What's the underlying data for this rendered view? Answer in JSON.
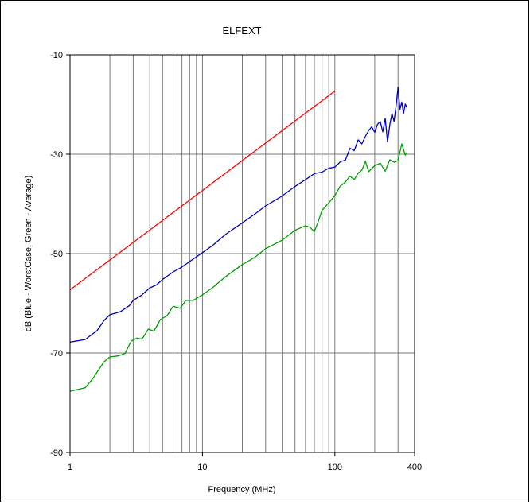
{
  "chart_data": {
    "type": "line",
    "title": "ELFEXT",
    "xlabel": "Frequency (MHz)",
    "ylabel": "dB (Blue - WorstCase, Green - Average)",
    "x_scale": "log",
    "xlim": [
      1,
      400
    ],
    "ylim": [
      -90,
      -10
    ],
    "x_ticks": [
      1,
      10,
      100,
      400
    ],
    "x_tick_labels": [
      "1",
      "10",
      "100",
      "400"
    ],
    "y_ticks": [
      -90,
      -70,
      -50,
      -30,
      -10
    ],
    "y_tick_labels": [
      "-90",
      "-70",
      "-50",
      "-30",
      "-10"
    ],
    "grid": true,
    "series": [
      {
        "color": "#ff0000",
        "x": [
          1,
          100
        ],
        "y": [
          -57.3,
          -17.3
        ]
      },
      {
        "color": "#0000c0",
        "x": [
          1,
          1.3,
          1.6,
          1.8,
          2,
          2.4,
          2.8,
          3,
          3.5,
          4,
          4.5,
          5,
          6,
          7,
          8,
          10,
          12,
          15,
          20,
          25,
          30,
          40,
          50,
          60,
          70,
          80,
          90,
          100,
          110,
          120,
          130,
          140,
          150,
          160,
          170,
          180,
          190,
          200,
          210,
          220,
          230,
          240,
          250,
          260,
          270,
          280,
          290,
          300,
          310,
          320,
          330,
          340,
          350
        ],
        "y": [
          -67.8,
          -67.3,
          -65.5,
          -63.5,
          -62.3,
          -61.7,
          -60.5,
          -59.4,
          -58.3,
          -56.9,
          -56.3,
          -55.2,
          -53.7,
          -52.7,
          -51.6,
          -49.8,
          -48.3,
          -46.1,
          -43.8,
          -42.0,
          -40.4,
          -38.4,
          -36.5,
          -35.1,
          -33.9,
          -33.6,
          -32.8,
          -32.6,
          -31.5,
          -31.2,
          -28.8,
          -29.3,
          -27.1,
          -27.9,
          -26.4,
          -25.2,
          -24.5,
          -25.6,
          -24.0,
          -23.4,
          -25.5,
          -22.8,
          -27.5,
          -24.0,
          -21.8,
          -23.4,
          -20.2,
          -16.5,
          -21.0,
          -19.5,
          -21.8,
          -19.9,
          -20.6
        ]
      },
      {
        "color": "#00a000",
        "x": [
          1,
          1.3,
          1.5,
          1.8,
          2,
          2.3,
          2.6,
          2.9,
          3.2,
          3.5,
          3.9,
          4.3,
          4.8,
          5.4,
          6,
          6.8,
          7.5,
          8.5,
          10,
          12,
          15,
          20,
          25,
          30,
          40,
          50,
          60,
          65,
          70,
          75,
          80,
          90,
          100,
          110,
          120,
          130,
          140,
          150,
          160,
          170,
          180,
          200,
          220,
          240,
          260,
          280,
          300,
          320,
          340,
          350
        ],
        "y": [
          -77.7,
          -77.0,
          -75.0,
          -71.8,
          -70.8,
          -70.6,
          -70.1,
          -67.6,
          -67.0,
          -67.2,
          -65.2,
          -65.6,
          -63.3,
          -62.5,
          -60.6,
          -61.0,
          -59.4,
          -59.4,
          -58.3,
          -56.8,
          -54.6,
          -52.2,
          -50.7,
          -49.0,
          -47.3,
          -45.3,
          -44.4,
          -44.7,
          -45.6,
          -43.5,
          -41.3,
          -39.8,
          -38.3,
          -36.4,
          -35.6,
          -34.4,
          -35.1,
          -33.8,
          -33.2,
          -31.4,
          -33.5,
          -32.3,
          -31.8,
          -33.4,
          -31.1,
          -31.6,
          -31.3,
          -27.9,
          -30.2,
          -29.6
        ]
      }
    ]
  }
}
